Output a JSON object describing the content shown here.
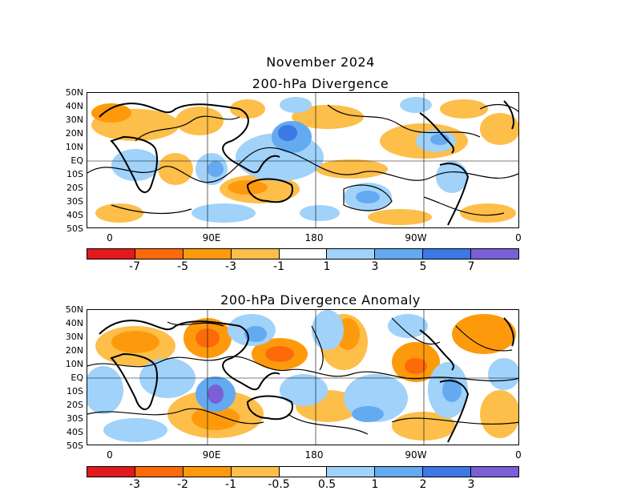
{
  "figure": {
    "title": "November 2024"
  },
  "panels": [
    {
      "title": "200-hPa Divergence",
      "lat_labels": [
        "50N",
        "40N",
        "30N",
        "20N",
        "10N",
        "EQ",
        "10S",
        "20S",
        "30S",
        "40S",
        "50S"
      ],
      "lon_labels": [
        "0",
        "90E",
        "180",
        "90W",
        "0"
      ],
      "colorbar": {
        "colors": [
          "#e31a1c",
          "#fc6a0a",
          "#fd9a0c",
          "#fdbe4a",
          "#ffffff",
          "#a0d2fa",
          "#63aaf0",
          "#3c78e6",
          "#7a5fd6"
        ],
        "labels": [
          "-7",
          "-5",
          "-3",
          "-1",
          "1",
          "3",
          "5",
          "7"
        ]
      }
    },
    {
      "title": "200-hPa Divergence Anomaly",
      "lat_labels": [
        "50N",
        "40N",
        "30N",
        "20N",
        "10N",
        "EQ",
        "10S",
        "20S",
        "30S",
        "40S",
        "50S"
      ],
      "lon_labels": [
        "0",
        "90E",
        "180",
        "90W",
        "0"
      ],
      "colorbar": {
        "colors": [
          "#e31a1c",
          "#fc6a0a",
          "#fd9a0c",
          "#fdbe4a",
          "#ffffff",
          "#a0d2fa",
          "#63aaf0",
          "#3c78e6",
          "#7a5fd6"
        ],
        "labels": [
          "-3",
          "-2",
          "-1",
          "-0.5",
          "0.5",
          "1",
          "2",
          "3"
        ]
      }
    }
  ]
}
